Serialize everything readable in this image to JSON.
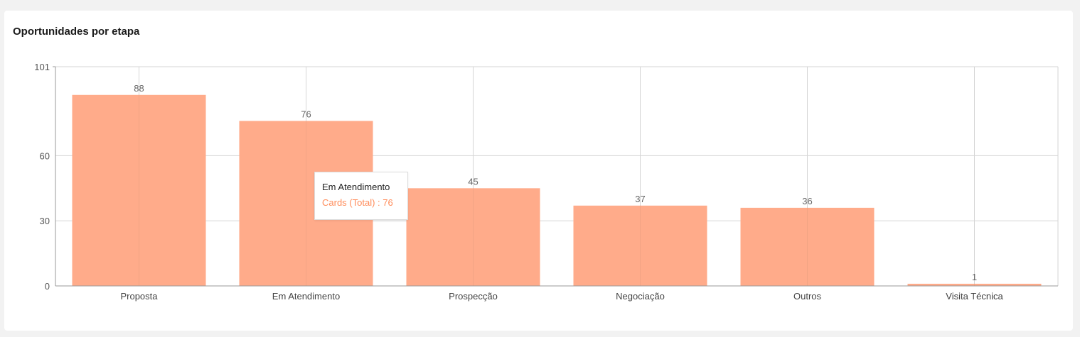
{
  "card": {
    "title": "Oportunidades por etapa"
  },
  "colors": {
    "bar": "#ffab8a",
    "tooltip_value": "#ff8c5a",
    "grid": "#d6d6d6",
    "axis": "#999999"
  },
  "tooltip": {
    "title": "Em Atendimento",
    "series_label": "Cards (Total)",
    "value": "76",
    "value_text": "Cards (Total) : 76"
  },
  "chart_data": {
    "type": "bar",
    "title": "Oportunidades por etapa",
    "categories": [
      "Proposta",
      "Em Atendimento",
      "Prospecção",
      "Negociação",
      "Outros",
      "Visita Técnica"
    ],
    "series": [
      {
        "name": "Cards (Total)",
        "values": [
          88,
          76,
          45,
          37,
          36,
          1
        ]
      }
    ],
    "ylim": [
      0,
      101
    ],
    "yticks": [
      0,
      30,
      60,
      101
    ],
    "xlabel": "",
    "ylabel": "",
    "grid": true,
    "legend": "none",
    "data_labels": true
  }
}
